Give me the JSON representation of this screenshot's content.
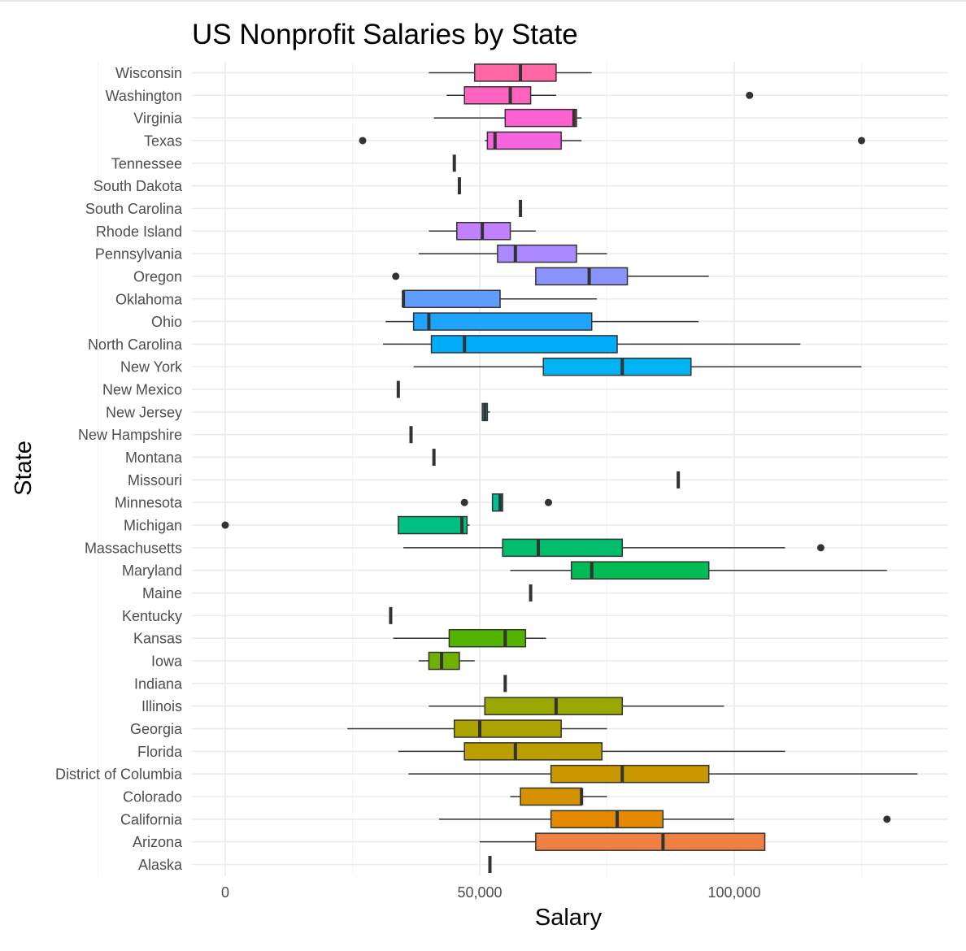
{
  "chart_data": {
    "type": "boxplot",
    "orientation": "horizontal",
    "title": "US Nonprofit Salaries by State",
    "xlabel": "Salary",
    "ylabel": "State",
    "xlim": [
      -5000,
      142000
    ],
    "x_ticks": [
      0,
      50000,
      100000
    ],
    "x_tick_labels": [
      "0",
      "50,000",
      "100,000"
    ],
    "grid": true,
    "legend": "none",
    "categories": [
      "Alaska",
      "Arizona",
      "California",
      "Colorado",
      "District of Columbia",
      "Florida",
      "Georgia",
      "Illinois",
      "Indiana",
      "Iowa",
      "Kansas",
      "Kentucky",
      "Maine",
      "Maryland",
      "Massachusetts",
      "Michigan",
      "Minnesota",
      "Missouri",
      "Montana",
      "New Hampshire",
      "New Jersey",
      "New Mexico",
      "New York",
      "North Carolina",
      "Ohio",
      "Oklahoma",
      "Oregon",
      "Pennsylvania",
      "Rhode Island",
      "South Carolina",
      "South Dakota",
      "Tennessee",
      "Texas",
      "Virginia",
      "Washington",
      "Wisconsin"
    ],
    "boxes": [
      {
        "state": "Alaska",
        "min": 52000,
        "q1": 52000,
        "median": 52000,
        "q3": 52000,
        "max": 52000,
        "outliers": [],
        "color": "#F8766D"
      },
      {
        "state": "Arizona",
        "min": 50000,
        "q1": 61000,
        "median": 86000,
        "q3": 106000,
        "max": 106000,
        "outliers": [],
        "color": "#EE8043"
      },
      {
        "state": "California",
        "min": 42000,
        "q1": 64000,
        "median": 77000,
        "q3": 86000,
        "max": 100000,
        "outliers": [
          130000
        ],
        "color": "#E38900"
      },
      {
        "state": "Colorado",
        "min": 56000,
        "q1": 58000,
        "median": 70000,
        "q3": 70000,
        "max": 75000,
        "outliers": [],
        "color": "#D69100"
      },
      {
        "state": "District of Columbia",
        "min": 36000,
        "q1": 64000,
        "median": 78000,
        "q3": 95000,
        "max": 136000,
        "outliers": [],
        "color": "#C99800"
      },
      {
        "state": "Florida",
        "min": 34000,
        "q1": 47000,
        "median": 57000,
        "q3": 74000,
        "max": 110000,
        "outliers": [],
        "color": "#BA9E00"
      },
      {
        "state": "Georgia",
        "min": 24000,
        "q1": 45000,
        "median": 50000,
        "q3": 66000,
        "max": 75000,
        "outliers": [],
        "color": "#AAA300"
      },
      {
        "state": "Illinois",
        "min": 40000,
        "q1": 51000,
        "median": 65000,
        "q3": 78000,
        "max": 98000,
        "outliers": [],
        "color": "#99A800"
      },
      {
        "state": "Indiana",
        "min": 55000,
        "q1": 55000,
        "median": 55000,
        "q3": 55000,
        "max": 55000,
        "outliers": [],
        "color": "#86AC00"
      },
      {
        "state": "Iowa",
        "min": 38000,
        "q1": 40000,
        "median": 42500,
        "q3": 46000,
        "max": 49000,
        "outliers": [],
        "color": "#6FB000"
      },
      {
        "state": "Kansas",
        "min": 33000,
        "q1": 44000,
        "median": 55000,
        "q3": 59000,
        "max": 63000,
        "outliers": [],
        "color": "#53B400"
      },
      {
        "state": "Kentucky",
        "min": 32500,
        "q1": 32500,
        "median": 32500,
        "q3": 32500,
        "max": 32500,
        "outliers": [],
        "color": "#27B700"
      },
      {
        "state": "Maine",
        "min": 60000,
        "q1": 60000,
        "median": 60000,
        "q3": 60000,
        "max": 60000,
        "outliers": [],
        "color": "#00BA38"
      },
      {
        "state": "Maryland",
        "min": 56000,
        "q1": 68000,
        "median": 72000,
        "q3": 95000,
        "max": 130000,
        "outliers": [],
        "color": "#00BC55"
      },
      {
        "state": "Massachusetts",
        "min": 35000,
        "q1": 54500,
        "median": 61500,
        "q3": 78000,
        "max": 110000,
        "outliers": [
          117000
        ],
        "color": "#00BE6C"
      },
      {
        "state": "Michigan",
        "min": 34000,
        "q1": 34000,
        "median": 46500,
        "q3": 47500,
        "max": 48000,
        "outliers": [
          0
        ],
        "color": "#00C081"
      },
      {
        "state": "Minnesota",
        "min": 52500,
        "q1": 52500,
        "median": 54000,
        "q3": 54500,
        "max": 54500,
        "outliers": [
          47000,
          63500
        ],
        "color": "#00C094"
      },
      {
        "state": "Missouri",
        "min": 89000,
        "q1": 89000,
        "median": 89000,
        "q3": 89000,
        "max": 89000,
        "outliers": [],
        "color": "#00C1A7"
      },
      {
        "state": "Montana",
        "min": 41000,
        "q1": 41000,
        "median": 41000,
        "q3": 41000,
        "max": 41000,
        "outliers": [],
        "color": "#00C0B8"
      },
      {
        "state": "New Hampshire",
        "min": 36500,
        "q1": 36500,
        "median": 36500,
        "q3": 36500,
        "max": 36500,
        "outliers": [],
        "color": "#00BFC4"
      },
      {
        "state": "New Jersey",
        "min": 50500,
        "q1": 50500,
        "median": 51000,
        "q3": 51500,
        "max": 52000,
        "outliers": [],
        "color": "#00BCD6"
      },
      {
        "state": "New Mexico",
        "min": 34000,
        "q1": 34000,
        "median": 34000,
        "q3": 34000,
        "max": 34000,
        "outliers": [],
        "color": "#00B8E4"
      },
      {
        "state": "New York",
        "min": 37000,
        "q1": 62500,
        "median": 78000,
        "q3": 91500,
        "max": 125000,
        "outliers": [],
        "color": "#00B3F2"
      },
      {
        "state": "North Carolina",
        "min": 31000,
        "q1": 40500,
        "median": 47000,
        "q3": 77000,
        "max": 113000,
        "outliers": [],
        "color": "#00ADFA"
      },
      {
        "state": "Ohio",
        "min": 31500,
        "q1": 37000,
        "median": 40000,
        "q3": 72000,
        "max": 93000,
        "outliers": [],
        "color": "#1FA5FF"
      },
      {
        "state": "Oklahoma",
        "min": 35000,
        "q1": 35000,
        "median": 35000,
        "q3": 54000,
        "max": 73000,
        "outliers": [],
        "color": "#619CFF"
      },
      {
        "state": "Oregon",
        "min": 61000,
        "q1": 61000,
        "median": 71500,
        "q3": 79000,
        "max": 95000,
        "outliers": [
          33500
        ],
        "color": "#8B93FF"
      },
      {
        "state": "Pennsylvania",
        "min": 38000,
        "q1": 53500,
        "median": 57000,
        "q3": 69000,
        "max": 75000,
        "outliers": [],
        "color": "#AA88FF"
      },
      {
        "state": "Rhode Island",
        "min": 40000,
        "q1": 45500,
        "median": 50500,
        "q3": 56000,
        "max": 61000,
        "outliers": [],
        "color": "#C27FFF"
      },
      {
        "state": "South Carolina",
        "min": 58000,
        "q1": 58000,
        "median": 58000,
        "q3": 58000,
        "max": 58000,
        "outliers": [],
        "color": "#D575FE"
      },
      {
        "state": "South Dakota",
        "min": 46000,
        "q1": 46000,
        "median": 46000,
        "q3": 46000,
        "max": 46000,
        "outliers": [],
        "color": "#E46DF6"
      },
      {
        "state": "Tennessee",
        "min": 45000,
        "q1": 45000,
        "median": 45000,
        "q3": 45000,
        "max": 45000,
        "outliers": [],
        "color": "#EF67EB"
      },
      {
        "state": "Texas",
        "min": 51000,
        "q1": 51500,
        "median": 53000,
        "q3": 66000,
        "max": 70000,
        "outliers": [
          27000,
          125000
        ],
        "color": "#F863DF"
      },
      {
        "state": "Virginia",
        "min": 41000,
        "q1": 55000,
        "median": 68500,
        "q3": 69000,
        "max": 70000,
        "outliers": [],
        "color": "#FD61D1"
      },
      {
        "state": "Washington",
        "min": 43500,
        "q1": 47000,
        "median": 56000,
        "q3": 60000,
        "max": 65000,
        "outliers": [
          103000
        ],
        "color": "#FF63C0"
      },
      {
        "state": "Wisconsin",
        "min": 40000,
        "q1": 49000,
        "median": 58000,
        "q3": 65000,
        "max": 72000,
        "outliers": [],
        "color": "#FF67A4"
      }
    ]
  }
}
